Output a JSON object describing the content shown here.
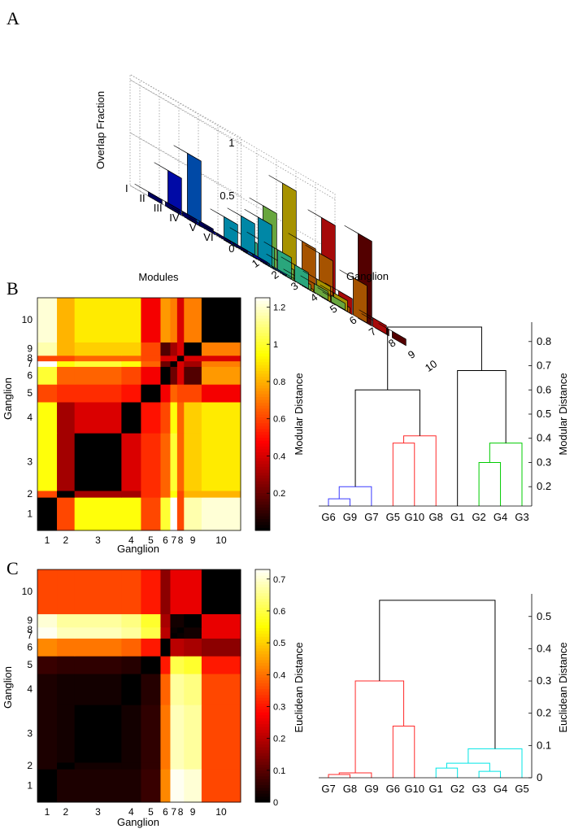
{
  "panel_labels": {
    "a": "A",
    "b": "B",
    "c": "C"
  },
  "chart_data": [
    {
      "id": "A",
      "type": "bar3d",
      "zlabel": "Overlap Fraction",
      "xlabel": "Ganglion",
      "ylabel": "Modules",
      "z_ticks": [
        "0",
        "0.5",
        "1"
      ],
      "zlim": [
        0,
        1
      ],
      "ganglia": [
        "1",
        "2",
        "3",
        "4",
        "5",
        "6",
        "7",
        "8",
        "9",
        "10"
      ],
      "modules": [
        "I",
        "II",
        "III",
        "IV",
        "V",
        "VI"
      ],
      "ganglion_colors": [
        "#00008f",
        "#0010ff",
        "#0070ff",
        "#00d0ff",
        "#40ffbf",
        "#a0ff60",
        "#ffe000",
        "#ff8000",
        "#ff1010",
        "#800000"
      ],
      "values": [
        [
          0.04,
          0.35,
          0.62,
          0.0,
          0.0,
          0.0,
          0.0,
          0.0,
          0.0,
          0.0
        ],
        [
          0.04,
          0.02,
          0.0,
          0.22,
          0.15,
          0.54,
          0.86,
          0.42,
          0.75,
          0.0
        ],
        [
          0.04,
          0.02,
          0.0,
          0.32,
          0.2,
          0.1,
          0.02,
          0.4,
          0.15,
          0.8
        ],
        [
          0.04,
          0.02,
          0.02,
          0.4,
          0.2,
          0.05,
          0.14,
          0.05,
          0.0,
          0.06
        ],
        [
          0.02,
          0.0,
          0.02,
          0.0,
          0.15,
          0.08,
          0.1,
          0.35,
          0.08,
          0.06
        ],
        [
          0.02,
          0.02,
          0.01,
          0.0,
          0.0,
          0.06,
          0.0,
          0.0,
          0.0,
          0.0
        ]
      ]
    },
    {
      "id": "B-heatmap",
      "type": "heatmap",
      "xlabel": "Ganglion",
      "ylabel": "Ganglion",
      "ticks": [
        "1",
        "2",
        "3",
        "4",
        "5",
        "6",
        "7",
        "8",
        "9",
        "10"
      ],
      "colorbar_label": "Modular Distance",
      "colorbar_ticks": [
        "0.2",
        "0.4",
        "0.6",
        "0.8",
        "1",
        "1.2"
      ],
      "clim": [
        0,
        1.25
      ],
      "matrix": [
        [
          0,
          0.6,
          0.95,
          0.95,
          0.6,
          1.0,
          1.25,
          0.6,
          1.15,
          1.2
        ],
        [
          0.6,
          0,
          0.3,
          0.3,
          0.55,
          0.65,
          0.95,
          0.6,
          0.8,
          0.8
        ],
        [
          0.95,
          0.3,
          0,
          0.4,
          0.55,
          0.65,
          1.0,
          0.65,
          0.85,
          0.9
        ],
        [
          0.95,
          0.3,
          0.4,
          0,
          0.5,
          0.6,
          0.95,
          0.65,
          0.85,
          0.9
        ],
        [
          0.6,
          0.55,
          0.55,
          0.5,
          0,
          0.45,
          0.65,
          0.6,
          0.6,
          0.45
        ],
        [
          1.0,
          0.65,
          0.65,
          0.6,
          0.45,
          0,
          0.2,
          0.4,
          0.15,
          0.75
        ],
        [
          1.25,
          0.95,
          1.0,
          0.95,
          0.65,
          0.2,
          0,
          0.4,
          0.3,
          0.7
        ],
        [
          0.6,
          0.6,
          0.65,
          0.65,
          0.6,
          0.4,
          0.4,
          0,
          0.4,
          0.4
        ],
        [
          1.15,
          0.8,
          0.85,
          0.85,
          0.6,
          0.15,
          0.3,
          0.4,
          0,
          0.7
        ],
        [
          1.2,
          0.8,
          0.9,
          0.9,
          0.45,
          0.75,
          0.7,
          0.4,
          0.7,
          0
        ]
      ]
    },
    {
      "id": "B-dendrogram",
      "type": "dendrogram",
      "ylabel": "Modular Distance",
      "y_ticks": [
        0.2,
        0.3,
        0.4,
        0.5,
        0.6,
        0.7,
        0.8
      ],
      "ylim": [
        0.12,
        0.88
      ],
      "leaves": [
        "G6",
        "G9",
        "G7",
        "G5",
        "G10",
        "G8",
        "G1",
        "G2",
        "G4",
        "G3"
      ],
      "links": [
        {
          "a": 0,
          "b": 1,
          "h": 0.15,
          "color": "#3a3aff"
        },
        {
          "a": 0.5,
          "b": 2,
          "h": 0.2,
          "color": "#3a3aff"
        },
        {
          "a": 3,
          "b": 4,
          "h": 0.38,
          "color": "#ff2a2a"
        },
        {
          "a": 3.5,
          "b": 5,
          "h": 0.41,
          "color": "#ff2a2a"
        },
        {
          "a": 7,
          "b": 8,
          "h": 0.3,
          "color": "#00cc00"
        },
        {
          "a": 7.5,
          "b": 9,
          "h": 0.38,
          "color": "#00cc00"
        },
        {
          "a": 1.25,
          "b": 4.25,
          "h": 0.6,
          "color": "#000000"
        },
        {
          "a": 6,
          "b": 8.25,
          "h": 0.68,
          "color": "#000000"
        },
        {
          "a": 2.75,
          "b": 7.125,
          "h": 0.86,
          "color": "#000000"
        }
      ]
    },
    {
      "id": "C-heatmap",
      "type": "heatmap",
      "xlabel": "Ganglion",
      "ylabel": "Ganglion",
      "ticks": [
        "1",
        "2",
        "3",
        "4",
        "5",
        "6",
        "7",
        "8",
        "9",
        "10"
      ],
      "colorbar_label": "Euclidean Distance",
      "colorbar_ticks": [
        "0",
        "0.1",
        "0.2",
        "0.3",
        "0.4",
        "0.5",
        "0.6",
        "0.7"
      ],
      "clim": [
        0,
        0.73
      ],
      "matrix": [
        [
          0,
          0.03,
          0.03,
          0.03,
          0.06,
          0.42,
          0.72,
          0.72,
          0.7,
          0.35
        ],
        [
          0.03,
          0,
          0.02,
          0.02,
          0.05,
          0.4,
          0.68,
          0.68,
          0.66,
          0.35
        ],
        [
          0.03,
          0.02,
          0,
          0.02,
          0.05,
          0.4,
          0.68,
          0.68,
          0.66,
          0.35
        ],
        [
          0.03,
          0.02,
          0.02,
          0,
          0.04,
          0.38,
          0.66,
          0.66,
          0.64,
          0.35
        ],
        [
          0.06,
          0.05,
          0.05,
          0.04,
          0,
          0.3,
          0.6,
          0.6,
          0.58,
          0.3
        ],
        [
          0.42,
          0.4,
          0.4,
          0.38,
          0.3,
          0,
          0.2,
          0.2,
          0.18,
          0.15
        ],
        [
          0.72,
          0.68,
          0.68,
          0.66,
          0.6,
          0.2,
          0,
          0.01,
          0.02,
          0.25
        ],
        [
          0.72,
          0.68,
          0.68,
          0.66,
          0.6,
          0.2,
          0.01,
          0,
          0.02,
          0.25
        ],
        [
          0.7,
          0.66,
          0.66,
          0.64,
          0.58,
          0.18,
          0.02,
          0.02,
          0,
          0.25
        ],
        [
          0.35,
          0.35,
          0.35,
          0.35,
          0.3,
          0.15,
          0.25,
          0.25,
          0.25,
          0
        ]
      ]
    },
    {
      "id": "C-dendrogram",
      "type": "dendrogram",
      "ylabel": "Euclidean Distance",
      "y_ticks": [
        0,
        0.1,
        0.2,
        0.3,
        0.4,
        0.5
      ],
      "ylim": [
        0,
        0.57
      ],
      "leaves": [
        "G7",
        "G8",
        "G9",
        "G6",
        "G10",
        "G1",
        "G2",
        "G3",
        "G4",
        "G5"
      ],
      "links": [
        {
          "a": 0,
          "b": 1,
          "h": 0.01,
          "color": "#ff2a2a"
        },
        {
          "a": 0.5,
          "b": 2,
          "h": 0.015,
          "color": "#ff2a2a"
        },
        {
          "a": 3,
          "b": 4,
          "h": 0.16,
          "color": "#ff2a2a"
        },
        {
          "a": 1.25,
          "b": 3.5,
          "h": 0.3,
          "color": "#ff2a2a"
        },
        {
          "a": 7,
          "b": 8,
          "h": 0.02,
          "color": "#00e5e5"
        },
        {
          "a": 5,
          "b": 6,
          "h": 0.03,
          "color": "#00e5e5"
        },
        {
          "a": 5.5,
          "b": 7.5,
          "h": 0.045,
          "color": "#00e5e5"
        },
        {
          "a": 6.5,
          "b": 9,
          "h": 0.09,
          "color": "#00e5e5"
        },
        {
          "a": 2.375,
          "b": 7.75,
          "h": 0.55,
          "color": "#000000"
        }
      ]
    }
  ]
}
